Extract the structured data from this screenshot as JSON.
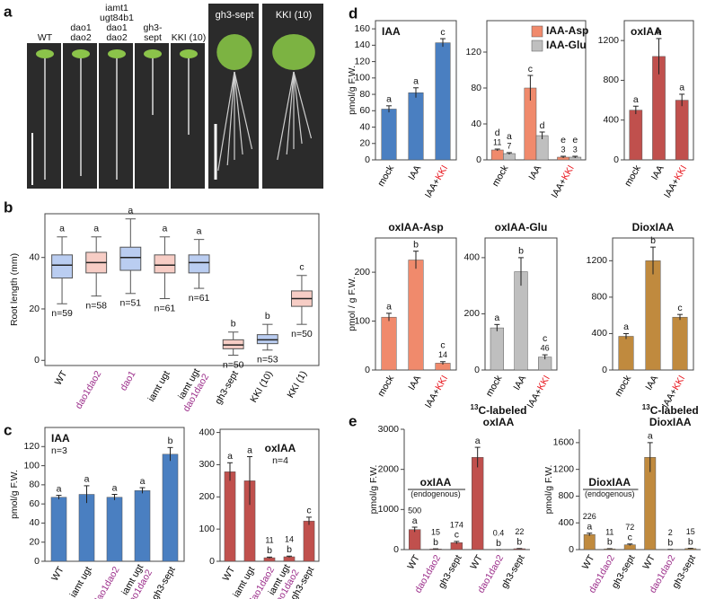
{
  "panel_letters": [
    "a",
    "b",
    "c",
    "d",
    "e"
  ],
  "panel_a": {
    "labels": [
      [
        "WT"
      ],
      [
        "dao1",
        "dao2"
      ],
      [
        "iamt1",
        "ugt84b1",
        "dao1",
        "dao2"
      ],
      [
        "gh3-",
        "sept"
      ],
      [
        "KKI (10)"
      ],
      [
        "gh3-sept"
      ],
      [
        "KKI (10)"
      ]
    ]
  },
  "chart_data": [
    {
      "type": "box",
      "ylabel": "Root length (mm)",
      "categories": [
        [
          "WT"
        ],
        [
          "dao1dao2"
        ],
        [
          "dao1"
        ],
        [
          "iamt ugt"
        ],
        [
          "iamt ugt",
          "dao1dao2"
        ],
        [
          "gh3-sept"
        ],
        [
          "KKI (10)"
        ],
        [
          "KKI (1)"
        ]
      ],
      "category_colors": [
        [
          "#000"
        ],
        [
          "#9b2d8a"
        ],
        [
          "#9b2d8a"
        ],
        [
          "#000"
        ],
        [
          "#000",
          "#9b2d8a"
        ],
        [
          "#000"
        ],
        [
          "#000"
        ],
        [
          "#000"
        ]
      ],
      "series": [
        {
          "colors": [
            "#3a6fd8",
            "#e8705a",
            "#3a6fd8",
            "#e8705a",
            "#3a6fd8",
            "#e8705a",
            "#3a6fd8",
            "#e8705a"
          ],
          "medians": [
            37,
            38,
            40,
            37,
            38,
            6,
            8,
            24
          ],
          "q1": [
            32,
            34,
            35,
            34,
            34,
            4.5,
            6.5,
            21
          ],
          "q3": [
            41,
            42,
            44,
            41,
            41,
            8,
            10,
            27
          ],
          "mins": [
            22,
            25,
            26,
            24,
            28,
            2,
            4,
            14
          ],
          "maxs": [
            48,
            48,
            55,
            48,
            47,
            11,
            14,
            33
          ],
          "letters": [
            "a",
            "a",
            "a",
            "a",
            "a",
            "b",
            "b",
            "c"
          ],
          "n_labels": [
            "n=59",
            "n=58",
            "n=51",
            "n=61",
            "n=61",
            "n=50",
            "n=53",
            "n=50"
          ]
        }
      ],
      "ylim": [
        -2,
        57
      ],
      "yticks": [
        0,
        20,
        40
      ],
      "frame": true
    },
    {
      "type": "bar",
      "title": "IAA",
      "subtitle": "n=3",
      "ylabel": "pmol/g F.W.",
      "categories": [
        [
          "WT"
        ],
        [
          "iamt ugt"
        ],
        [
          "dao1dao2"
        ],
        [
          "iamt ugt",
          "dao1dao2"
        ],
        [
          "gh3-sept"
        ]
      ],
      "category_colors": [
        [
          "#000"
        ],
        [
          "#000"
        ],
        [
          "#9b2d8a"
        ],
        [
          "#000",
          "#9b2d8a"
        ],
        [
          "#000"
        ]
      ],
      "series": [
        {
          "color": "#4a7fc1",
          "values": [
            67,
            70,
            67,
            74,
            112
          ],
          "errors": [
            2,
            9,
            3,
            3,
            7
          ],
          "letters": [
            "a",
            "a",
            "a",
            "a",
            "b"
          ]
        }
      ],
      "annotation_order": [
        "letters"
      ],
      "ylim": [
        0,
        140
      ],
      "yticks": [
        0,
        20,
        40,
        60,
        80,
        100,
        120
      ],
      "frame": true
    },
    {
      "type": "bar",
      "title": "oxIAA",
      "subtitle": "n=4",
      "categories": [
        [
          "WT"
        ],
        [
          "iamt ugt"
        ],
        [
          "dao1dao2"
        ],
        [
          "iamt ugt",
          "dao1dao2"
        ],
        [
          "gh3-sept"
        ]
      ],
      "category_colors": [
        [
          "#000"
        ],
        [
          "#000"
        ],
        [
          "#9b2d8a"
        ],
        [
          "#000",
          "#9b2d8a"
        ],
        [
          "#000"
        ]
      ],
      "series": [
        {
          "color": "#c0504d",
          "values": [
            278,
            250,
            11,
            14,
            125
          ],
          "errors": [
            28,
            75,
            2,
            2,
            12
          ],
          "letters": [
            "a",
            "a",
            "b",
            "b",
            "c"
          ],
          "value_labels": [
            null,
            null,
            "11",
            "14",
            null
          ]
        }
      ],
      "annotation_order": [
        "value_labels",
        "letters"
      ],
      "ylim": [
        0,
        410
      ],
      "yticks": [
        0,
        100,
        200,
        300,
        400
      ],
      "frame": true
    },
    {
      "type": "bar",
      "title": "IAA",
      "ylabel": "pmol/g F.W.",
      "categories": [
        [
          "mock"
        ],
        [
          "IAA"
        ],
        [
          "IAA+",
          "KKI"
        ]
      ],
      "category_colors": [
        [
          "#000"
        ],
        [
          "#000"
        ],
        [
          "#000",
          "#e8141c"
        ]
      ],
      "category_inline": true,
      "series": [
        {
          "color": "#4a7fc1",
          "values": [
            62,
            82,
            143
          ],
          "errors": [
            4,
            6,
            5
          ],
          "letters": [
            "a",
            "a",
            "c"
          ]
        }
      ],
      "annotation_order": [
        "letters"
      ],
      "ylim": [
        0,
        170
      ],
      "yticks": [
        0,
        20,
        40,
        60,
        80,
        100,
        120,
        140,
        160
      ],
      "frame": true
    },
    {
      "type": "bar",
      "categories": [
        [
          "mock"
        ],
        [
          "IAA"
        ],
        [
          "IAA+",
          "KKI"
        ]
      ],
      "category_colors": [
        [
          "#000"
        ],
        [
          "#000"
        ],
        [
          "#000",
          "#e8141c"
        ]
      ],
      "category_inline": true,
      "series": [
        {
          "name": "IAA-Asp",
          "color": "#f08a6c",
          "values": [
            11,
            80,
            3
          ],
          "errors": [
            1,
            14,
            1
          ],
          "letters": [
            "d",
            "c",
            "e"
          ],
          "value_labels": [
            "11",
            null,
            "3"
          ]
        },
        {
          "name": "IAA-Glu",
          "color": "#bfbfbf",
          "values": [
            7,
            27,
            3
          ],
          "errors": [
            1,
            4,
            1
          ],
          "letters": [
            "a",
            "d",
            "e"
          ],
          "value_labels": [
            "7",
            null,
            "3"
          ]
        }
      ],
      "annotation_order": [
        "letters",
        "value_labels"
      ],
      "ylim": [
        0,
        155
      ],
      "yticks": [
        0,
        40,
        80,
        120
      ],
      "frame": true,
      "legend": "top-right"
    },
    {
      "type": "bar",
      "title": "oxIAA",
      "categories": [
        [
          "mock"
        ],
        [
          "IAA"
        ],
        [
          "IAA+",
          "KKI"
        ]
      ],
      "category_colors": [
        [
          "#000"
        ],
        [
          "#000"
        ],
        [
          "#000",
          "#e8141c"
        ]
      ],
      "category_inline": true,
      "series": [
        {
          "color": "#c0504d",
          "values": [
            500,
            1040,
            600
          ],
          "errors": [
            40,
            180,
            60
          ],
          "letters": [
            "a",
            "b",
            "a"
          ]
        }
      ],
      "annotation_order": [
        "letters"
      ],
      "ylim": [
        0,
        1400
      ],
      "yticks": [
        0,
        400,
        800,
        1200
      ],
      "frame": true
    },
    {
      "type": "bar",
      "title": "oxIAA-Asp",
      "ylabel": "pmol / g F.W.",
      "categories": [
        [
          "mock"
        ],
        [
          "IAA"
        ],
        [
          "IAA+",
          "KKI"
        ]
      ],
      "category_colors": [
        [
          "#000"
        ],
        [
          "#000"
        ],
        [
          "#000",
          "#e8141c"
        ]
      ],
      "category_inline": true,
      "series": [
        {
          "color": "#f08a6c",
          "values": [
            108,
            225,
            14
          ],
          "errors": [
            8,
            18,
            3
          ],
          "letters": [
            "a",
            "b",
            "c"
          ],
          "value_labels": [
            null,
            null,
            "14"
          ]
        }
      ],
      "annotation_order": [
        "letters",
        "value_labels"
      ],
      "ylim": [
        0,
        270
      ],
      "yticks": [
        0,
        100,
        200
      ],
      "frame": true
    },
    {
      "type": "bar",
      "title": "oxIAA-Glu",
      "categories": [
        [
          "mock"
        ],
        [
          "IAA"
        ],
        [
          "IAA+",
          "KKI"
        ]
      ],
      "category_colors": [
        [
          "#000"
        ],
        [
          "#000"
        ],
        [
          "#000",
          "#e8141c"
        ]
      ],
      "category_inline": true,
      "series": [
        {
          "color": "#bfbfbf",
          "values": [
            150,
            350,
            46
          ],
          "errors": [
            12,
            50,
            8
          ],
          "letters": [
            "a",
            "b",
            "c"
          ],
          "value_labels": [
            null,
            null,
            "46"
          ]
        }
      ],
      "annotation_order": [
        "letters",
        "value_labels"
      ],
      "ylim": [
        0,
        470
      ],
      "yticks": [
        0,
        200,
        400
      ],
      "frame": true
    },
    {
      "type": "bar",
      "title": "DioxIAA",
      "categories": [
        [
          "mock"
        ],
        [
          "IAA"
        ],
        [
          "IAA+",
          "KKI"
        ]
      ],
      "category_colors": [
        [
          "#000"
        ],
        [
          "#000"
        ],
        [
          "#000",
          "#e8141c"
        ]
      ],
      "category_inline": true,
      "series": [
        {
          "color": "#c08a3e",
          "values": [
            370,
            1200,
            580
          ],
          "errors": [
            30,
            150,
            30
          ],
          "letters": [
            "a",
            "b",
            "c"
          ]
        }
      ],
      "annotation_order": [
        "letters"
      ],
      "ylim": [
        0,
        1450
      ],
      "yticks": [
        0,
        400,
        800,
        1200
      ],
      "frame": true
    },
    {
      "type": "bar",
      "ylabel": "pmol/g F.W.",
      "categories": [
        [
          "WT"
        ],
        [
          "dao1dao2"
        ],
        [
          "gh3-sept"
        ],
        [
          "WT"
        ],
        [
          "dao1dao2"
        ],
        [
          "gh3-sept"
        ]
      ],
      "category_colors": [
        [
          "#000"
        ],
        [
          "#9b2d8a"
        ],
        [
          "#000"
        ],
        [
          "#000"
        ],
        [
          "#9b2d8a"
        ],
        [
          "#000"
        ]
      ],
      "series": [
        {
          "color": "#c0504d",
          "values": [
            500,
            15,
            174,
            2300,
            0.4,
            22
          ],
          "errors": [
            60,
            5,
            30,
            250,
            0.2,
            5
          ],
          "letters": [
            "a",
            "b",
            "c",
            "a",
            "b",
            "b"
          ],
          "value_labels": [
            "500",
            "15",
            "174",
            null,
            "0.4",
            "22"
          ]
        }
      ],
      "annotation_order": [
        "value_labels",
        "letters"
      ],
      "ylim": [
        0,
        3000
      ],
      "yticks": [
        0,
        1000,
        2000,
        3000
      ],
      "frame": false,
      "groups": [
        {
          "lines": [
            "oxIAA",
            "(endogenous)"
          ],
          "color": "#000"
        },
        {
          "sup": "13",
          "lines": [
            "C-labeled",
            "oxIAA"
          ],
          "color": "#e8141c"
        }
      ]
    },
    {
      "type": "bar",
      "ylabel": "pmol/g F.W.",
      "categories": [
        [
          "WT"
        ],
        [
          "dao1dao2"
        ],
        [
          "gh3-sept"
        ],
        [
          "WT"
        ],
        [
          "dao1dao2"
        ],
        [
          "gh3-sept"
        ]
      ],
      "category_colors": [
        [
          "#000"
        ],
        [
          "#9b2d8a"
        ],
        [
          "#000"
        ],
        [
          "#000"
        ],
        [
          "#9b2d8a"
        ],
        [
          "#000"
        ]
      ],
      "series": [
        {
          "color": "#c08a3e",
          "values": [
            226,
            11,
            72,
            1380,
            2,
            15
          ],
          "errors": [
            20,
            3,
            12,
            220,
            1,
            4
          ],
          "letters": [
            "a",
            "b",
            "c",
            "a",
            "b",
            "b"
          ],
          "value_labels": [
            "226",
            "11",
            "72",
            null,
            "2",
            "15"
          ]
        }
      ],
      "annotation_order": [
        "value_labels",
        "letters"
      ],
      "ylim": [
        0,
        1800
      ],
      "yticks": [
        0,
        400,
        800,
        1200,
        1600
      ],
      "frame": false,
      "groups": [
        {
          "lines": [
            "DioxIAA",
            "(endogenous)"
          ],
          "color": "#000"
        },
        {
          "sup": "13",
          "lines": [
            "C-labeled",
            "DioxIAA"
          ],
          "color": "#e8141c"
        }
      ]
    }
  ]
}
